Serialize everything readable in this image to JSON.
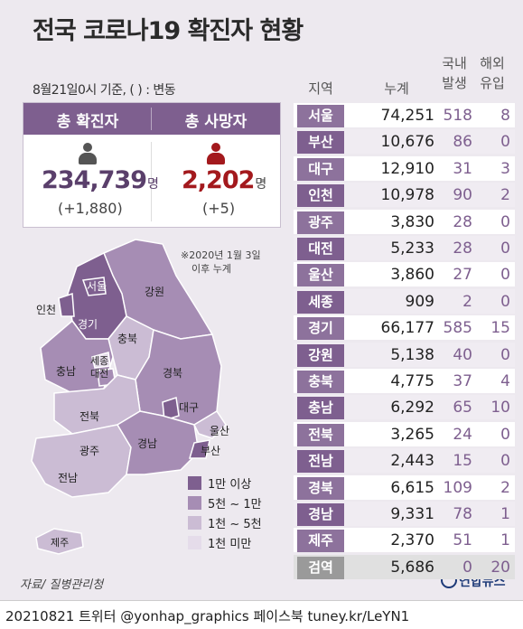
{
  "title": "전국 코로나19 확진자 현황",
  "subtitle": "8월21일0시 기준, ( ) : 변동",
  "summary": {
    "confirmed_label": "총 확진자",
    "confirmed_value": "234,739",
    "confirmed_unit": "명",
    "confirmed_change": "(+1,880)",
    "deaths_label": "총 사망자",
    "deaths_value": "2,202",
    "deaths_unit": "명",
    "deaths_change": "(+5)"
  },
  "note_line1": "※2020년 1월 3일",
  "note_line2": "이후 누계",
  "map_labels": {
    "seoul": "서울",
    "incheon": "인천",
    "gyeonggi": "경기",
    "gangwon": "강원",
    "chungbuk": "충북",
    "sejong": "세종",
    "daejeon": "대전",
    "chungnam": "충남",
    "gyeongbuk": "경북",
    "daegu": "대구",
    "jeonbuk": "전북",
    "gwangju": "광주",
    "jeonnam": "전남",
    "gyeongnam": "경남",
    "ulsan": "울산",
    "busan": "부산",
    "jeju": "제주"
  },
  "legend": [
    {
      "label": "1만 이상",
      "color": "#7e5f8f"
    },
    {
      "label": "5천 ~ 1만",
      "color": "#a68db4"
    },
    {
      "label": "1천 ~ 5천",
      "color": "#cbbcd4"
    },
    {
      "label": "1천 미만",
      "color": "#e5dcea"
    }
  ],
  "table": {
    "headers": {
      "region": "지역",
      "total": "누계",
      "domestic_1": "국내",
      "domestic_2": "발생",
      "overseas_1": "해외",
      "overseas_2": "유입"
    },
    "rows": [
      {
        "region": "서울",
        "total": "74,251",
        "domestic": "518",
        "overseas": "8"
      },
      {
        "region": "부산",
        "total": "10,676",
        "domestic": "86",
        "overseas": "0"
      },
      {
        "region": "대구",
        "total": "12,910",
        "domestic": "31",
        "overseas": "3"
      },
      {
        "region": "인천",
        "total": "10,978",
        "domestic": "90",
        "overseas": "2"
      },
      {
        "region": "광주",
        "total": "3,830",
        "domestic": "28",
        "overseas": "0"
      },
      {
        "region": "대전",
        "total": "5,233",
        "domestic": "28",
        "overseas": "0"
      },
      {
        "region": "울산",
        "total": "3,860",
        "domestic": "27",
        "overseas": "0"
      },
      {
        "region": "세종",
        "total": "909",
        "domestic": "2",
        "overseas": "0"
      },
      {
        "region": "경기",
        "total": "66,177",
        "domestic": "585",
        "overseas": "15"
      },
      {
        "region": "강원",
        "total": "5,138",
        "domestic": "40",
        "overseas": "0"
      },
      {
        "region": "충북",
        "total": "4,775",
        "domestic": "37",
        "overseas": "4"
      },
      {
        "region": "충남",
        "total": "6,292",
        "domestic": "65",
        "overseas": "10"
      },
      {
        "region": "전북",
        "total": "3,265",
        "domestic": "24",
        "overseas": "0"
      },
      {
        "region": "전남",
        "total": "2,443",
        "domestic": "15",
        "overseas": "0"
      },
      {
        "region": "경북",
        "total": "6,615",
        "domestic": "109",
        "overseas": "2"
      },
      {
        "region": "경남",
        "total": "9,331",
        "domestic": "78",
        "overseas": "1"
      },
      {
        "region": "제주",
        "total": "2,370",
        "domestic": "51",
        "overseas": "1"
      },
      {
        "region": "검역",
        "total": "5,686",
        "domestic": "0",
        "overseas": "20"
      }
    ]
  },
  "source": "자료/ 질병관리청",
  "logo": "연합뉴스",
  "footer": "20210821  트위터 @yonhap_graphics  페이스북 tuney.kr/LeYN1"
}
